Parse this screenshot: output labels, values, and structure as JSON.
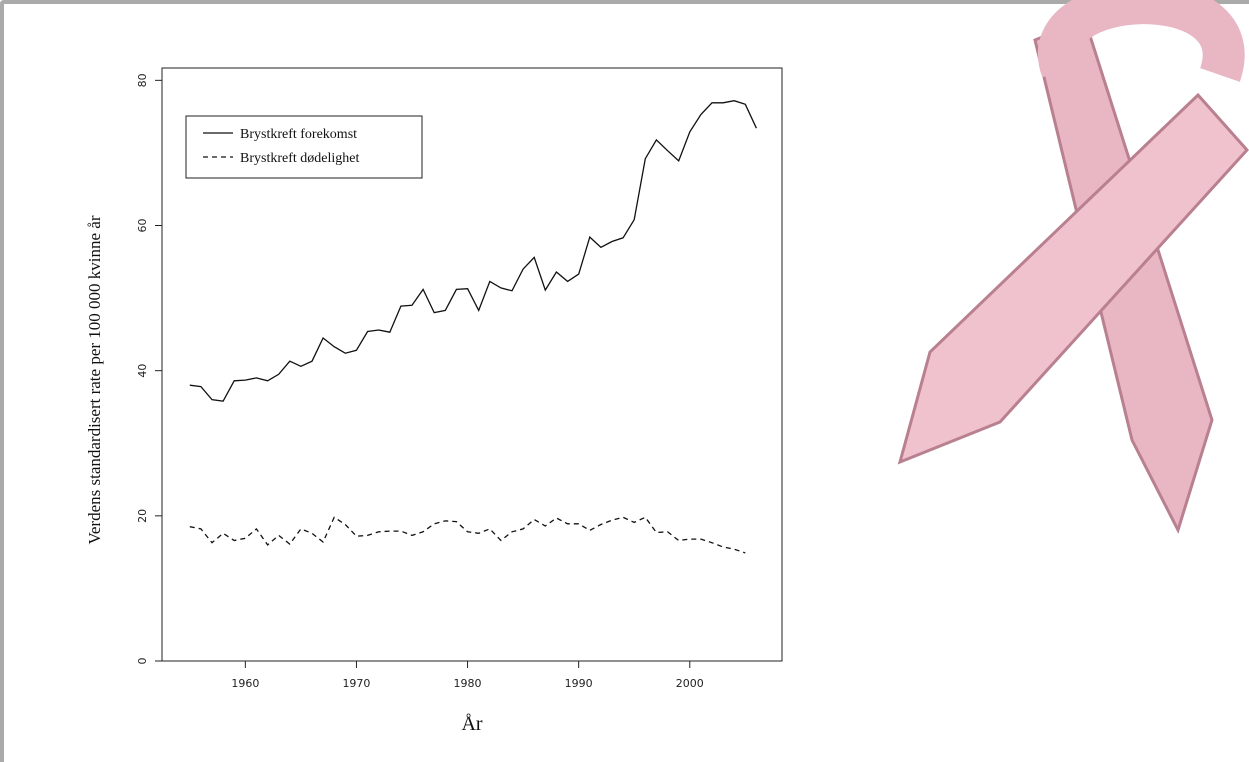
{
  "chart_data": {
    "type": "line",
    "x": [
      1955,
      1956,
      1957,
      1958,
      1959,
      1960,
      1961,
      1962,
      1963,
      1964,
      1965,
      1966,
      1967,
      1968,
      1969,
      1970,
      1971,
      1972,
      1973,
      1974,
      1975,
      1976,
      1977,
      1978,
      1979,
      1980,
      1981,
      1982,
      1983,
      1984,
      1985,
      1986,
      1987,
      1988,
      1989,
      1990,
      1991,
      1992,
      1993,
      1994,
      1995,
      1996,
      1997,
      1998,
      1999,
      2000,
      2001,
      2002,
      2003,
      2004,
      2005,
      2006
    ],
    "series": [
      {
        "name": "Brystkreft forekomst",
        "color": "#111111",
        "dash": "solid",
        "values": [
          38,
          37.8,
          36,
          35.8,
          38.6,
          38.7,
          39,
          38.6,
          39.5,
          41.3,
          40.6,
          41.3,
          44.5,
          43.3,
          42.4,
          42.8,
          45.4,
          45.6,
          45.3,
          48.9,
          49,
          51.2,
          48,
          48.3,
          51.2,
          51.3,
          48.3,
          52.3,
          51.4,
          51,
          54,
          55.6,
          51.1,
          53.6,
          52.3,
          53.3,
          58.4,
          57,
          57.8,
          58.3,
          60.8,
          69.2,
          71.8,
          70.3,
          68.9,
          72.9,
          75.3,
          76.9,
          76.9,
          77.2,
          76.7,
          73.4
        ]
      },
      {
        "name": "Brystkreft dødelighet",
        "color": "#111111",
        "dash": "dashed",
        "values": [
          18.5,
          18.2,
          16.3,
          17.6,
          16.6,
          16.9,
          18.2,
          16,
          17.3,
          16.1,
          18.2,
          17.6,
          16.4,
          19.8,
          18.8,
          17.2,
          17.3,
          17.8,
          17.9,
          17.9,
          17.3,
          17.8,
          18.9,
          19.3,
          19.2,
          17.8,
          17.6,
          18.2,
          16.6,
          17.8,
          18.2,
          19.5,
          18.6,
          19.7,
          18.9,
          18.9,
          18,
          18.8,
          19.4,
          19.8,
          19.1,
          19.8,
          17.7,
          17.8,
          16.6,
          16.8,
          16.8,
          16.3,
          15.7,
          15.4,
          14.9,
          null
        ]
      }
    ],
    "x_label": "År",
    "y_label": "Verdens standardisert rate per 100 000 kvinne år",
    "xlim": [
      1952.5,
      2008.3
    ],
    "xticks": [
      1960,
      1970,
      1980,
      1990,
      2000
    ],
    "ylim": [
      0,
      81.7
    ],
    "yticks": [
      0,
      20,
      40,
      60,
      80
    ],
    "grid": false,
    "legend": "top-left"
  }
}
